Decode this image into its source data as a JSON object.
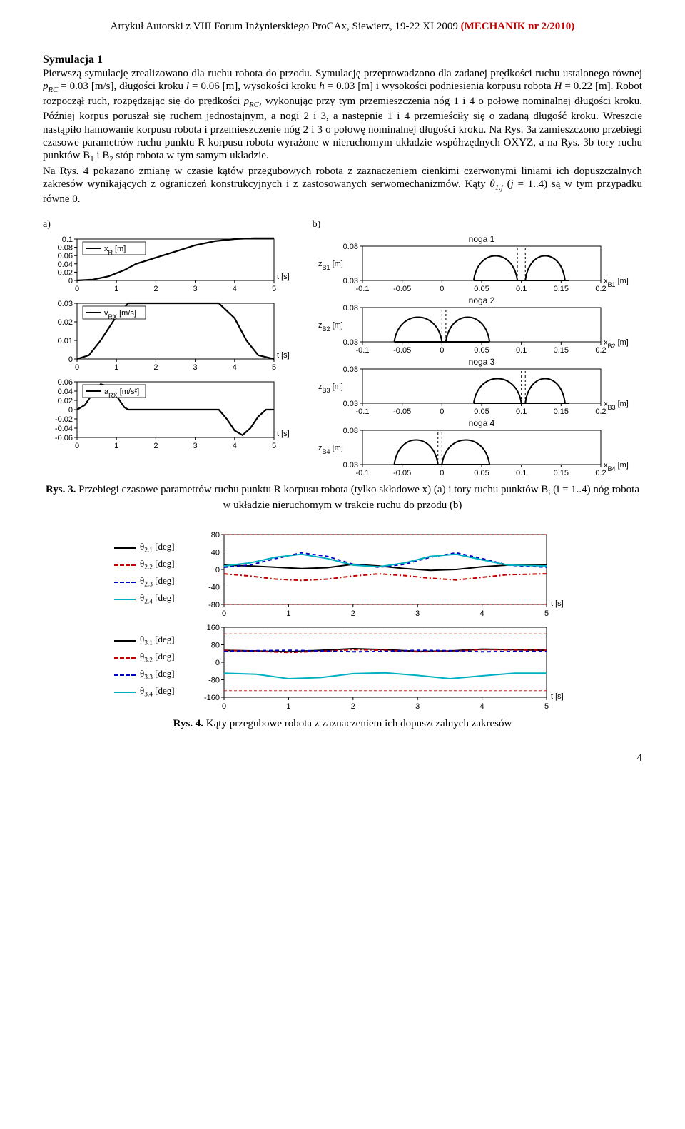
{
  "header": {
    "black_prefix": "Artykuł Autorski z VIII Forum Inżynierskiego ProCAx, Siewierz, 19-22 XI 2009 ",
    "red_suffix": "(MECHANIK nr 2/2010)"
  },
  "sim_title": "Symulacja 1",
  "body_html": "Pierwszą symulację zrealizowano dla ruchu robota do przodu. Symulację przeprowadzono dla zadanej prędkości ruchu ustalonego równej <i>p<span class=\"sub\">RC</span></i> = 0.03 [m/s], długości kroku <i>l</i> = 0.06 [m], wysokości kroku <i>h</i> = 0.03 [m] i wysokości podniesienia korpusu robota <i>H</i> = 0.22 [m]. Robot rozpoczął ruch, rozpędzając się do prędkości <i>p<span class=\"sub\">RC</span></i>, wykonując przy tym przemieszczenia nóg 1 i 4 o połowę nominalnej długości kroku. Później korpus poruszał się ruchem jednostajnym, a nogi 2 i 3, a następnie 1 i 4 przemieściły się o zadaną długość kroku. Wreszcie nastąpiło hamowanie korpusu robota i przemieszczenie nóg 2 i 3 o połowę nominalnej długości kroku. Na Rys. 3a zamieszczono przebiegi czasowe parametrów ruchu punktu R korpusu robota wyrażone w nieruchomym układzie współrzędnych OXYZ, a na Rys. 3b tory ruchu punktów B<span class=\"sub\">1</span> i B<span class=\"sub\">2</span> stóp robota w tym samym układzie.<br>Na Rys. 4 pokazano zmianę w czasie kątów przegubowych robota z zaznaczeniem cienkimi czerwonymi liniami ich dopuszczalnych zakresów wynikających z ograniczeń konstrukcyjnych i z zastosowanych serwomechanizmów. Kąty <i>θ<span class=\"sub\">1.j</span></i> (<i>j</i> = 1..4) są w tym przypadku równe 0.",
  "fig3": {
    "a_label": "a)",
    "b_label": "b)",
    "caption_bold": "Rys. 3.",
    "caption_rest": " Przebiegi czasowe parametrów ruchu punktu R korpusu robota (tylko składowe x) (a) i tory ruchu punktów B<span class=\"sub\">i</span> (i = 1..4) nóg robota w układzie nieruchomym w trakcie ruchu do przodu (b)",
    "panelA": {
      "xlabel": "t [s]",
      "xticks": [
        0,
        1,
        2,
        3,
        4,
        5
      ],
      "line_color": "#000000",
      "line_width": 2.2,
      "charts": [
        {
          "legend": "x_R [m]",
          "yticks": [
            0,
            0.02,
            0.04,
            0.06,
            0.08,
            0.1
          ],
          "data": [
            [
              0,
              0
            ],
            [
              0.4,
              0.002
            ],
            [
              0.8,
              0.01
            ],
            [
              1.2,
              0.025
            ],
            [
              1.5,
              0.04
            ],
            [
              2,
              0.055
            ],
            [
              2.5,
              0.07
            ],
            [
              3,
              0.085
            ],
            [
              3.5,
              0.095
            ],
            [
              4,
              0.1
            ],
            [
              4.5,
              0.102
            ],
            [
              5,
              0.102
            ]
          ]
        },
        {
          "legend": "v_RX [m/s]",
          "yticks": [
            0,
            0.01,
            0.02,
            0.03
          ],
          "data": [
            [
              0,
              0
            ],
            [
              0.3,
              0.002
            ],
            [
              0.6,
              0.01
            ],
            [
              1.0,
              0.023
            ],
            [
              1.3,
              0.03
            ],
            [
              3.6,
              0.03
            ],
            [
              4.0,
              0.022
            ],
            [
              4.3,
              0.01
            ],
            [
              4.6,
              0.002
            ],
            [
              5,
              0
            ]
          ]
        },
        {
          "legend": "a_RX [m/s²]",
          "yticks": [
            -0.06,
            -0.04,
            -0.02,
            0,
            0.02,
            0.04,
            0.06
          ],
          "data": [
            [
              0,
              0
            ],
            [
              0.2,
              0.01
            ],
            [
              0.4,
              0.035
            ],
            [
              0.6,
              0.055
            ],
            [
              0.8,
              0.05
            ],
            [
              1.0,
              0.03
            ],
            [
              1.2,
              0.005
            ],
            [
              1.3,
              0
            ],
            [
              3.6,
              0
            ],
            [
              3.8,
              -0.02
            ],
            [
              4.0,
              -0.045
            ],
            [
              4.2,
              -0.055
            ],
            [
              4.4,
              -0.04
            ],
            [
              4.6,
              -0.015
            ],
            [
              4.8,
              0
            ],
            [
              5,
              0
            ]
          ]
        }
      ]
    },
    "panelB": {
      "xticks": [
        -0.1,
        -0.05,
        0,
        0.05,
        0.1,
        0.15,
        0.2
      ],
      "yticks": [
        0.03,
        0.08
      ],
      "line_color": "#000000",
      "line_width": 2.0,
      "dashed_line": {
        "color": "#000000",
        "dash": "3,3"
      },
      "charts": [
        {
          "title": "noga 1",
          "ylabel": "z_B1 [m]",
          "xlabel": "x_B1 [m]",
          "arcs": [
            [
              0.04,
              0.095
            ],
            [
              0.105,
              0.155
            ]
          ],
          "baseline": [
            [
              0.04,
              0.03
            ],
            [
              0.16,
              0.03
            ]
          ],
          "verticals": [
            0.095,
            0.105
          ]
        },
        {
          "title": "noga 2",
          "ylabel": "z_B2 [m]",
          "xlabel": "x_B2 [m]",
          "arcs": [
            [
              -0.06,
              0.0
            ],
            [
              0.005,
              0.06
            ]
          ],
          "baseline": [
            [
              -0.06,
              0.03
            ],
            [
              0.06,
              0.03
            ]
          ],
          "verticals": [
            0.0,
            0.005
          ]
        },
        {
          "title": "noga 3",
          "ylabel": "z_B3 [m]",
          "xlabel": "x_B3 [m]",
          "arcs": [
            [
              0.04,
              0.1
            ],
            [
              0.105,
              0.155
            ]
          ],
          "baseline": [
            [
              0.04,
              0.03
            ],
            [
              0.16,
              0.03
            ]
          ],
          "verticals": [
            0.1,
            0.105
          ]
        },
        {
          "title": "noga 4",
          "ylabel": "z_B4 [m]",
          "xlabel": "x_B4 [m]",
          "arcs": [
            [
              -0.06,
              -0.005
            ],
            [
              0.0,
              0.06
            ]
          ],
          "baseline": [
            [
              -0.06,
              0.03
            ],
            [
              0.06,
              0.03
            ]
          ],
          "verticals": [
            -0.005,
            0.0
          ]
        }
      ]
    }
  },
  "fig4": {
    "caption_bold": "Rys. 4.",
    "caption_rest": " Kąty przegubowe robota z zaznaczeniem ich dopuszczalnych zakresów",
    "xlabel": "t [s]",
    "xticks": [
      0,
      1,
      2,
      3,
      4,
      5
    ],
    "limit_color": "#c00000",
    "charts": [
      {
        "yticks": [
          -80,
          -40,
          0,
          40,
          80
        ],
        "legend": [
          {
            "label": "θ_2.1 [deg]",
            "color": "#000000",
            "dash": ""
          },
          {
            "label": "θ_2.2 [deg]",
            "color": "#c00000",
            "dash": "6,3,2,3"
          },
          {
            "label": "θ_2.3 [deg]",
            "color": "#0000c0",
            "dash": "5,4"
          },
          {
            "label": "θ_2.4 [deg]",
            "color": "#00b0c0",
            "dash": ""
          }
        ],
        "limits": [
          -80,
          80
        ],
        "series": [
          {
            "color": "#000000",
            "dash": "",
            "data": [
              [
                0,
                10
              ],
              [
                0.4,
                8
              ],
              [
                0.8,
                5
              ],
              [
                1.2,
                2
              ],
              [
                1.6,
                4
              ],
              [
                2.0,
                12
              ],
              [
                2.4,
                8
              ],
              [
                2.8,
                2
              ],
              [
                3.2,
                -2
              ],
              [
                3.6,
                0
              ],
              [
                4.0,
                6
              ],
              [
                4.4,
                10
              ],
              [
                5,
                10
              ]
            ]
          },
          {
            "color": "#c00000",
            "dash": "6,3,2,3",
            "data": [
              [
                0,
                -10
              ],
              [
                0.4,
                -15
              ],
              [
                0.8,
                -22
              ],
              [
                1.2,
                -25
              ],
              [
                1.6,
                -22
              ],
              [
                2.0,
                -15
              ],
              [
                2.4,
                -10
              ],
              [
                2.8,
                -14
              ],
              [
                3.2,
                -20
              ],
              [
                3.6,
                -24
              ],
              [
                4.0,
                -18
              ],
              [
                4.4,
                -12
              ],
              [
                5,
                -10
              ]
            ]
          },
          {
            "color": "#0000c0",
            "dash": "5,4",
            "data": [
              [
                0,
                5
              ],
              [
                0.4,
                10
              ],
              [
                0.8,
                25
              ],
              [
                1.2,
                38
              ],
              [
                1.6,
                30
              ],
              [
                2.0,
                12
              ],
              [
                2.4,
                5
              ],
              [
                2.8,
                12
              ],
              [
                3.2,
                28
              ],
              [
                3.6,
                38
              ],
              [
                4.0,
                25
              ],
              [
                4.4,
                10
              ],
              [
                5,
                5
              ]
            ]
          },
          {
            "color": "#00b0c0",
            "dash": "",
            "data": [
              [
                0,
                8
              ],
              [
                0.4,
                15
              ],
              [
                0.8,
                28
              ],
              [
                1.2,
                35
              ],
              [
                1.6,
                25
              ],
              [
                2.0,
                10
              ],
              [
                2.4,
                6
              ],
              [
                2.8,
                15
              ],
              [
                3.2,
                30
              ],
              [
                3.6,
                35
              ],
              [
                4.0,
                22
              ],
              [
                4.4,
                10
              ],
              [
                5,
                8
              ]
            ]
          }
        ]
      },
      {
        "yticks": [
          -160,
          -80,
          0,
          80,
          160
        ],
        "legend": [
          {
            "label": "θ_3.1 [deg]",
            "color": "#000000",
            "dash": ""
          },
          {
            "label": "θ_3.2 [deg]",
            "color": "#c00000",
            "dash": "6,3,2,3"
          },
          {
            "label": "θ_3.3 [deg]",
            "color": "#0000c0",
            "dash": "5,4"
          },
          {
            "label": "θ_3.4 [deg]",
            "color": "#00b0c0",
            "dash": ""
          }
        ],
        "limits": [
          -130,
          130
        ],
        "series": [
          {
            "color": "#000000",
            "dash": "",
            "data": [
              [
                0,
                55
              ],
              [
                0.5,
                52
              ],
              [
                1.0,
                48
              ],
              [
                1.5,
                55
              ],
              [
                2.0,
                62
              ],
              [
                2.5,
                58
              ],
              [
                3.0,
                50
              ],
              [
                3.5,
                52
              ],
              [
                4.0,
                60
              ],
              [
                4.5,
                58
              ],
              [
                5,
                55
              ]
            ]
          },
          {
            "color": "#c00000",
            "dash": "6,3,2,3",
            "data": [
              [
                0,
                55
              ],
              [
                0.5,
                50
              ],
              [
                1.0,
                45
              ],
              [
                1.5,
                50
              ],
              [
                2.0,
                58
              ],
              [
                2.5,
                55
              ],
              [
                3.0,
                48
              ],
              [
                3.5,
                50
              ],
              [
                4.0,
                58
              ],
              [
                4.5,
                56
              ],
              [
                5,
                55
              ]
            ]
          },
          {
            "color": "#0000c0",
            "dash": "5,4",
            "data": [
              [
                0,
                50
              ],
              [
                0.5,
                53
              ],
              [
                1.0,
                55
              ],
              [
                1.5,
                52
              ],
              [
                2.0,
                48
              ],
              [
                2.5,
                50
              ],
              [
                3.0,
                55
              ],
              [
                3.5,
                53
              ],
              [
                4.0,
                48
              ],
              [
                4.5,
                50
              ],
              [
                5,
                50
              ]
            ]
          },
          {
            "color": "#00b0c0",
            "dash": "",
            "data": [
              [
                0,
                -50
              ],
              [
                0.5,
                -55
              ],
              [
                1.0,
                -75
              ],
              [
                1.5,
                -70
              ],
              [
                2.0,
                -52
              ],
              [
                2.5,
                -48
              ],
              [
                3.0,
                -60
              ],
              [
                3.5,
                -75
              ],
              [
                4.0,
                -62
              ],
              [
                4.5,
                -50
              ],
              [
                5,
                -50
              ]
            ]
          }
        ]
      }
    ]
  },
  "page_number": "4"
}
